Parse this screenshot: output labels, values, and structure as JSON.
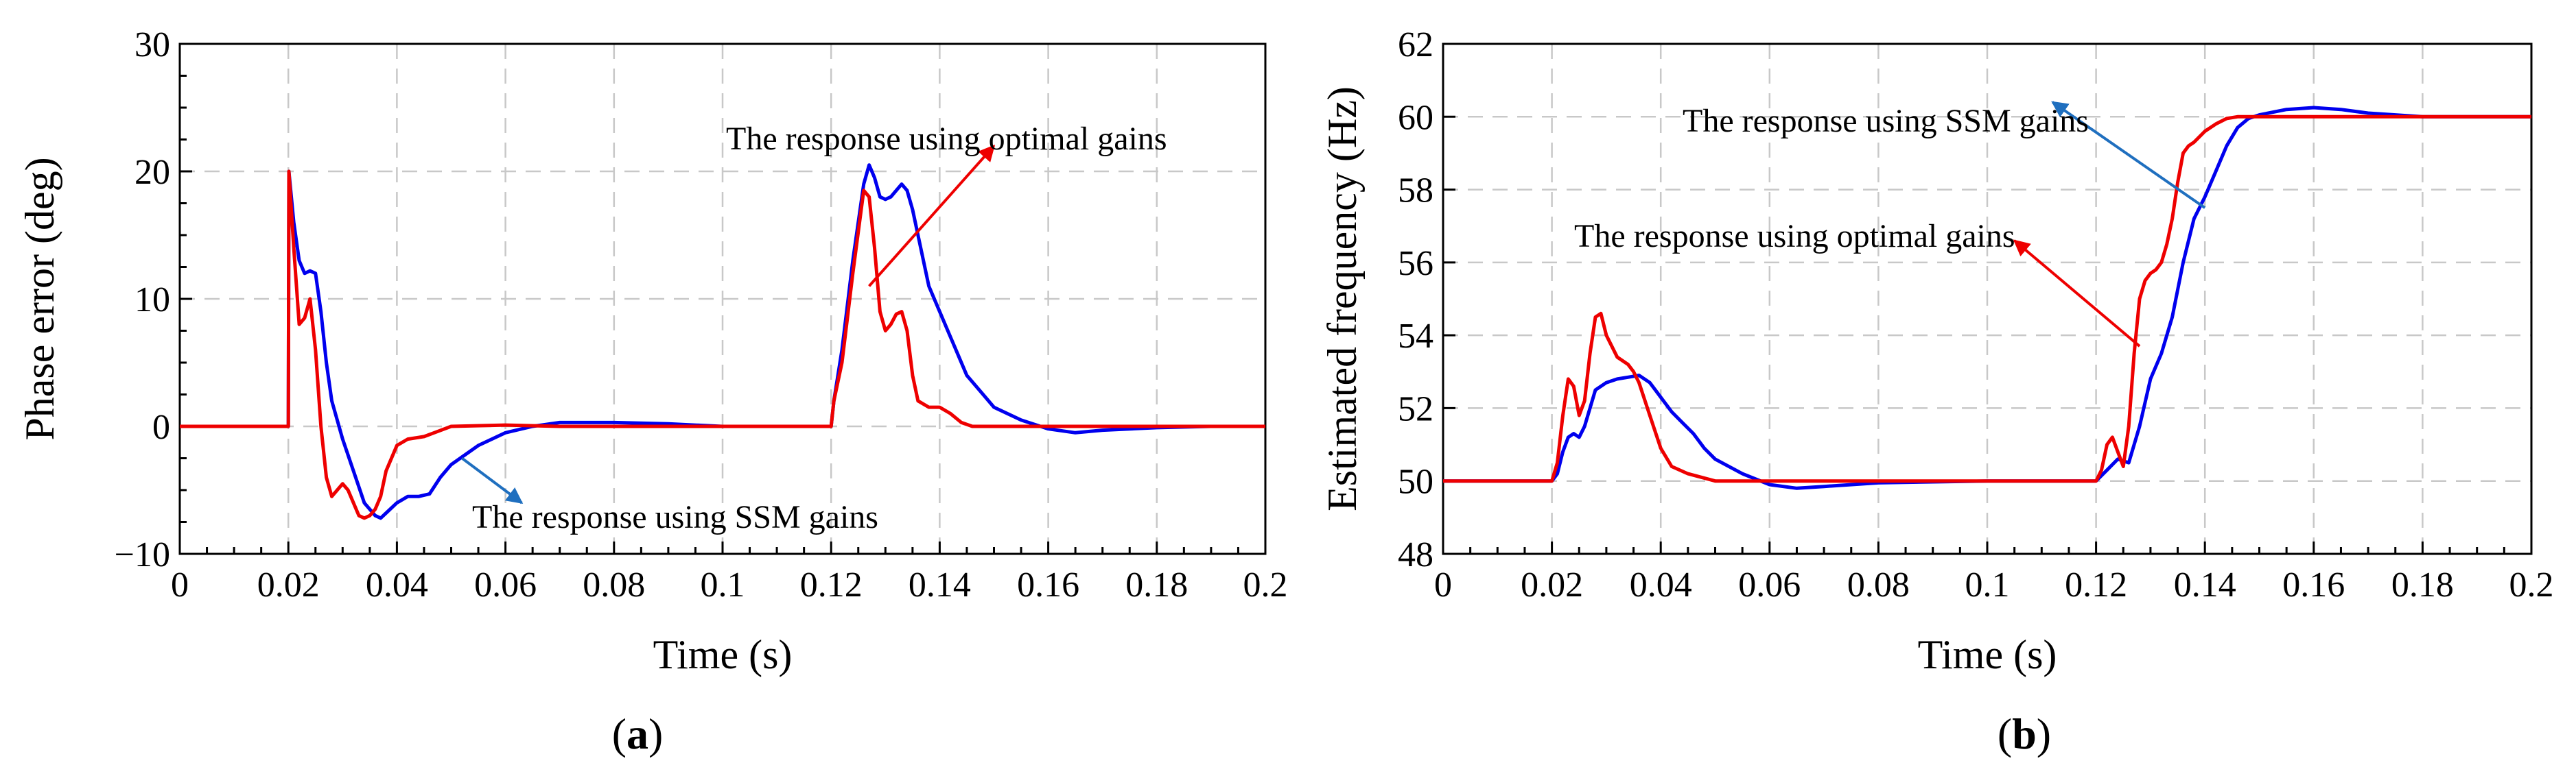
{
  "chart_data": [
    {
      "type": "line",
      "panel_label": "a",
      "xlabel": "Time (s)",
      "ylabel": "Phase error (deg)",
      "xlim": [
        0,
        0.2
      ],
      "ylim": [
        -10,
        30
      ],
      "xticks": [
        0,
        0.02,
        0.04,
        0.06,
        0.08,
        0.1,
        0.12,
        0.14,
        0.16,
        0.18,
        0.2
      ],
      "xtick_labels": [
        "0",
        "0.02",
        "0.04",
        "0.06",
        "0.08",
        "0.1",
        "0.12",
        "0.14",
        "0.16",
        "0.18",
        "0.2"
      ],
      "yticks": [
        -10,
        0,
        10,
        20,
        30
      ],
      "ytick_labels": [
        "−10",
        "0",
        "10",
        "20",
        "30"
      ],
      "grid": true,
      "series": [
        {
          "name": "The response using SSM gains",
          "color": "#0000ee",
          "x": [
            0,
            0.02,
            0.0201,
            0.021,
            0.022,
            0.023,
            0.024,
            0.025,
            0.026,
            0.027,
            0.028,
            0.03,
            0.032,
            0.034,
            0.036,
            0.037,
            0.038,
            0.04,
            0.042,
            0.044,
            0.046,
            0.048,
            0.05,
            0.055,
            0.06,
            0.065,
            0.07,
            0.075,
            0.08,
            0.09,
            0.1,
            0.11,
            0.12,
            0.1205,
            0.122,
            0.124,
            0.126,
            0.127,
            0.128,
            0.129,
            0.13,
            0.131,
            0.132,
            0.133,
            0.134,
            0.135,
            0.136,
            0.138,
            0.14,
            0.142,
            0.145,
            0.148,
            0.15,
            0.155,
            0.16,
            0.165,
            0.17,
            0.18,
            0.19,
            0.2
          ],
          "y": [
            0,
            0,
            20,
            16,
            13,
            12,
            12.2,
            12,
            9,
            5,
            2,
            -1,
            -3.5,
            -6,
            -7,
            -7.2,
            -6.8,
            -6,
            -5.5,
            -5.5,
            -5.3,
            -4,
            -3,
            -1.5,
            -0.5,
            0,
            0.3,
            0.3,
            0.3,
            0.2,
            0,
            0,
            0,
            2,
            6,
            13,
            19,
            20.5,
            19.5,
            18,
            17.8,
            18,
            18.5,
            19,
            18.5,
            17,
            15,
            11,
            9,
            7,
            4,
            2.5,
            1.5,
            0.5,
            -0.2,
            -0.5,
            -0.3,
            -0.1,
            0,
            0
          ]
        },
        {
          "name": "The response using optimal gains",
          "color": "#ee0000",
          "x": [
            0,
            0.02,
            0.0201,
            0.021,
            0.022,
            0.023,
            0.024,
            0.025,
            0.026,
            0.027,
            0.028,
            0.029,
            0.03,
            0.031,
            0.032,
            0.033,
            0.034,
            0.035,
            0.036,
            0.037,
            0.038,
            0.04,
            0.042,
            0.045,
            0.05,
            0.06,
            0.07,
            0.08,
            0.1,
            0.12,
            0.1205,
            0.122,
            0.124,
            0.126,
            0.127,
            0.128,
            0.129,
            0.13,
            0.131,
            0.132,
            0.133,
            0.134,
            0.135,
            0.136,
            0.138,
            0.14,
            0.142,
            0.144,
            0.146,
            0.15,
            0.16,
            0.2
          ],
          "y": [
            0,
            0,
            20,
            14,
            8,
            8.5,
            10,
            6,
            0,
            -4,
            -5.5,
            -5,
            -4.5,
            -5,
            -6,
            -7,
            -7.2,
            -7,
            -6.5,
            -5.5,
            -3.5,
            -1.5,
            -1,
            -0.8,
            0,
            0.1,
            0,
            0,
            0,
            0,
            2,
            5,
            12,
            18.5,
            18,
            14,
            9,
            7.5,
            8,
            8.8,
            9,
            7.5,
            4,
            2,
            1.5,
            1.5,
            1,
            0.3,
            0,
            0,
            0,
            0
          ]
        }
      ],
      "annotations": [
        {
          "text": "The response using optimal gains",
          "color": "#ee0000",
          "points_from": [
            0.127,
            11
          ],
          "points_to": [
            0.15,
            22
          ]
        },
        {
          "text": "The response using SSM gains",
          "color": "#1f6fbf",
          "points_from": [
            0.052,
            -2.5
          ],
          "points_to": [
            0.063,
            -6
          ]
        }
      ]
    },
    {
      "type": "line",
      "panel_label": "b",
      "xlabel": "Time (s)",
      "ylabel": "Estimated frequency (Hz)",
      "xlim": [
        0,
        0.2
      ],
      "ylim": [
        48,
        62
      ],
      "xticks": [
        0,
        0.02,
        0.04,
        0.06,
        0.08,
        0.1,
        0.12,
        0.14,
        0.16,
        0.18,
        0.2
      ],
      "xtick_labels": [
        "0",
        "0.02",
        "0.04",
        "0.06",
        "0.08",
        "0.1",
        "0.12",
        "0.14",
        "0.16",
        "0.18",
        "0.2"
      ],
      "yticks": [
        48,
        50,
        52,
        54,
        56,
        58,
        60,
        62
      ],
      "ytick_labels": [
        "48",
        "50",
        "52",
        "54",
        "56",
        "58",
        "60",
        "62"
      ],
      "grid": true,
      "series": [
        {
          "name": "The response using SSM gains",
          "color": "#0000ee",
          "x": [
            0,
            0.02,
            0.021,
            0.022,
            0.023,
            0.024,
            0.025,
            0.026,
            0.027,
            0.028,
            0.03,
            0.032,
            0.034,
            0.036,
            0.038,
            0.04,
            0.042,
            0.044,
            0.046,
            0.048,
            0.05,
            0.055,
            0.06,
            0.065,
            0.07,
            0.08,
            0.1,
            0.12,
            0.122,
            0.124,
            0.126,
            0.128,
            0.13,
            0.132,
            0.134,
            0.136,
            0.138,
            0.14,
            0.142,
            0.144,
            0.146,
            0.148,
            0.15,
            0.155,
            0.16,
            0.165,
            0.17,
            0.18,
            0.2
          ],
          "y": [
            50,
            50,
            50.2,
            50.8,
            51.2,
            51.3,
            51.2,
            51.5,
            52,
            52.5,
            52.7,
            52.8,
            52.85,
            52.9,
            52.7,
            52.3,
            51.9,
            51.6,
            51.3,
            50.9,
            50.6,
            50.2,
            49.9,
            49.8,
            49.85,
            49.95,
            50,
            50,
            50.3,
            50.6,
            50.5,
            51.5,
            52.8,
            53.5,
            54.5,
            56,
            57.2,
            57.8,
            58.5,
            59.2,
            59.7,
            59.95,
            60.05,
            60.2,
            60.25,
            60.2,
            60.1,
            60,
            60
          ]
        },
        {
          "name": "The response using optimal gains",
          "color": "#ee0000",
          "x": [
            0,
            0.02,
            0.021,
            0.022,
            0.023,
            0.024,
            0.025,
            0.026,
            0.027,
            0.028,
            0.029,
            0.03,
            0.032,
            0.034,
            0.035,
            0.036,
            0.038,
            0.04,
            0.042,
            0.045,
            0.05,
            0.06,
            0.08,
            0.1,
            0.12,
            0.121,
            0.122,
            0.123,
            0.124,
            0.125,
            0.126,
            0.127,
            0.128,
            0.129,
            0.13,
            0.131,
            0.132,
            0.133,
            0.134,
            0.135,
            0.136,
            0.137,
            0.138,
            0.14,
            0.142,
            0.144,
            0.146,
            0.15,
            0.2
          ],
          "y": [
            50,
            50,
            50.5,
            51.8,
            52.8,
            52.6,
            51.8,
            52.2,
            53.5,
            54.5,
            54.6,
            54,
            53.4,
            53.2,
            53,
            52.7,
            51.8,
            50.9,
            50.4,
            50.2,
            50,
            50,
            50,
            50,
            50,
            50.3,
            51,
            51.2,
            50.8,
            50.4,
            51.5,
            53.5,
            55,
            55.5,
            55.7,
            55.8,
            56,
            56.5,
            57.2,
            58.2,
            59,
            59.2,
            59.3,
            59.6,
            59.8,
            59.95,
            60,
            60,
            60
          ]
        }
      ],
      "annotations": [
        {
          "text": "The response using SSM gains",
          "color": "#1f6fbf",
          "points_from": [
            0.14,
            57.5
          ],
          "points_to": [
            0.112,
            60.4
          ]
        },
        {
          "text": "The response using optimal gains",
          "color": "#ee0000",
          "points_from": [
            0.128,
            53.7
          ],
          "points_to": [
            0.105,
            56.6
          ]
        }
      ]
    }
  ]
}
